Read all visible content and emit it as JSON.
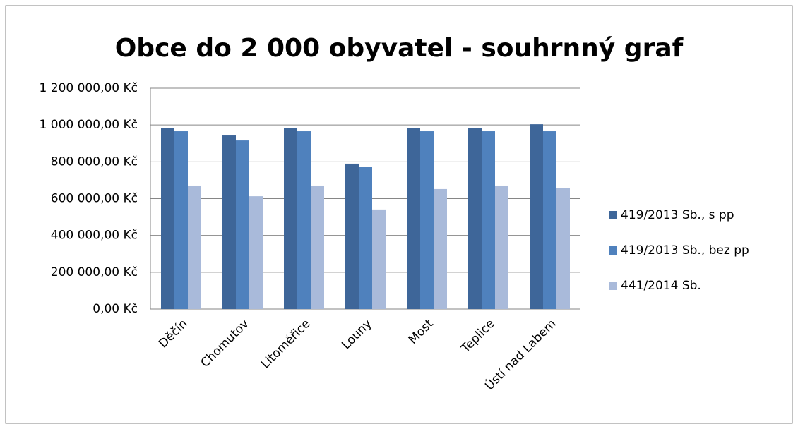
{
  "chart_data": {
    "type": "bar",
    "title": "Obce do 2 000 obyvatel - souhrnný graf",
    "categories": [
      "Děčín",
      "Chomutov",
      "Litoměřice",
      "Louny",
      "Most",
      "Teplice",
      "Ústí nad Labem"
    ],
    "series": [
      {
        "name": "419/2013 Sb., s pp",
        "color": "#3e6699",
        "values": [
          985000,
          943000,
          985000,
          790000,
          985000,
          985000,
          1004000
        ]
      },
      {
        "name": "419/2013 Sb., bez pp",
        "color": "#4f81bd",
        "values": [
          966000,
          916000,
          966000,
          771000,
          966000,
          966000,
          966000
        ]
      },
      {
        "name": "441/2014 Sb.",
        "color": "#a9bada",
        "values": [
          671000,
          613000,
          671000,
          541000,
          652000,
          671000,
          656000
        ]
      }
    ],
    "ylim": [
      0,
      1200000
    ],
    "yticks": [
      {
        "value": 0,
        "label": "0,00 Kč"
      },
      {
        "value": 200000,
        "label": "200 000,00 Kč"
      },
      {
        "value": 400000,
        "label": "400 000,00 Kč"
      },
      {
        "value": 600000,
        "label": "600 000,00 Kč"
      },
      {
        "value": 800000,
        "label": "800 000,00 Kč"
      },
      {
        "value": 1000000,
        "label": "1 000 000,00 Kč"
      },
      {
        "value": 1200000,
        "label": "1 200 000,00 Kč"
      }
    ],
    "grid": true,
    "legend": "right"
  }
}
